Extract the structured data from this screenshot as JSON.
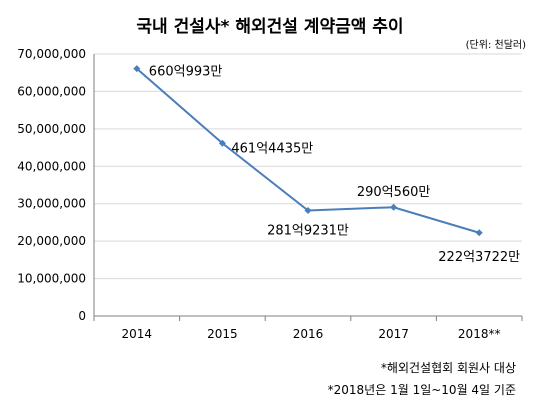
{
  "title": "국내 건설사* 해외건설 계약금액 추이",
  "unit_label": "(단위: 천달러)",
  "footnotes": [
    "*해외건설협회 회원사 대상",
    "*2018년은 1월 1일~10월 4일 기준"
  ],
  "colors": {
    "line": "#4a7ebb",
    "axis": "#7f7f7f",
    "grid": "#d9d9d9"
  },
  "chart_data": {
    "type": "line",
    "title": "국내 건설사* 해외건설 계약금액 추이",
    "categories": [
      "2014",
      "2015",
      "2016",
      "2017",
      "2018**"
    ],
    "values": [
      66099300,
      46144350,
      28192310,
      29056000,
      22237220
    ],
    "data_labels": [
      "660억993만",
      "461억4435만",
      "281억9231만",
      "290억560만",
      "222억3722만"
    ],
    "ylim": [
      0,
      70000000
    ],
    "yticks": [
      0,
      10000000,
      20000000,
      30000000,
      40000000,
      50000000,
      60000000,
      70000000
    ],
    "ytick_labels": [
      "0",
      "10,000,000",
      "20,000,000",
      "30,000,000",
      "40,000,000",
      "50,000,000",
      "60,000,000",
      "70,000,000"
    ],
    "grid": true,
    "legend": "none"
  }
}
